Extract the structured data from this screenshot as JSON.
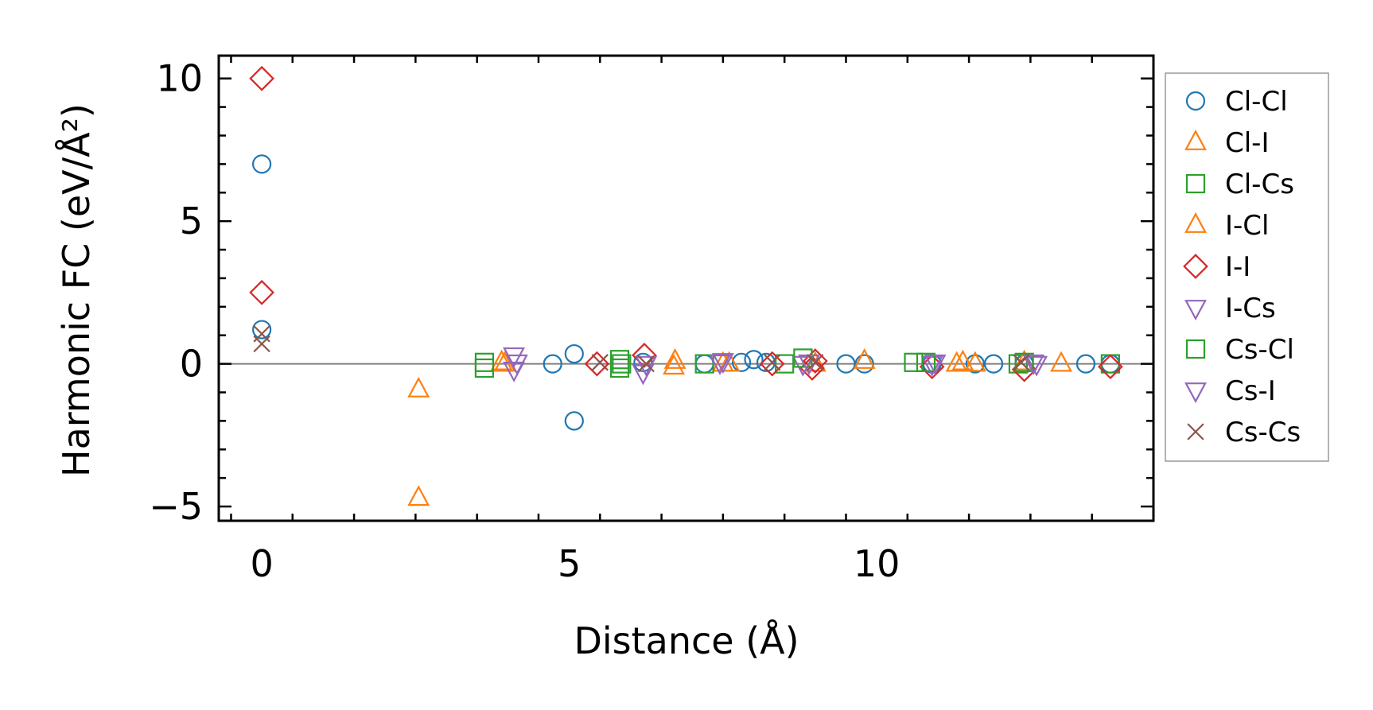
{
  "chart_data": {
    "type": "scatter",
    "xlabel": "Distance (Å)",
    "ylabel": "Harmonic FC (eV/Å²)",
    "xlim": [
      -0.7,
      14.5
    ],
    "ylim": [
      -5.5,
      10.8
    ],
    "xticks": [
      0,
      5,
      10
    ],
    "yticks": [
      -5,
      0,
      5,
      10
    ],
    "xtick_labels": [
      "0",
      "5",
      "10"
    ],
    "ytick_labels": [
      "−5",
      "0",
      "5",
      "10"
    ],
    "grid": false,
    "legend_position": "outside-right",
    "zero_line": true,
    "series": [
      {
        "name": "Cl-Cl",
        "marker": "circle",
        "color": "#1f77b4",
        "x": [
          0,
          0,
          4.73,
          5.08,
          5.08,
          6.2,
          7.2,
          7.8,
          8.0,
          8.2,
          9.5,
          9.8,
          10.9,
          11.6,
          11.9,
          12.4,
          13.4,
          13.8
        ],
        "y": [
          7.0,
          1.2,
          0.0,
          0.35,
          -2.0,
          0.05,
          0.0,
          0.05,
          0.15,
          0.05,
          0.0,
          0.0,
          0.0,
          0.0,
          0.0,
          0.0,
          0.0,
          0.0
        ]
      },
      {
        "name": "Cl-I",
        "marker": "triangle-up",
        "color": "#ff7f0e",
        "x": [
          2.55,
          2.55,
          3.9,
          6.7,
          7.5,
          9.0,
          11.3,
          11.6,
          13.0
        ],
        "y": [
          -0.9,
          -4.7,
          0.05,
          -0.1,
          0.0,
          0.0,
          0.0,
          0.0,
          0.0
        ]
      },
      {
        "name": "Cl-Cs",
        "marker": "square",
        "color": "#2ca02c",
        "x": [
          3.62,
          3.62,
          5.82,
          5.82,
          7.2,
          8.5,
          12.3,
          13.8
        ],
        "y": [
          0.05,
          -0.15,
          0.15,
          -0.15,
          0.0,
          0.0,
          0.0,
          0.0
        ]
      },
      {
        "name": "I-Cl",
        "marker": "triangle-up",
        "color": "#ff7f0e",
        "x": [
          3.95,
          6.72,
          7.6,
          9.8,
          11.4,
          12.4
        ],
        "y": [
          0.0,
          0.1,
          0.0,
          0.1,
          0.05,
          0.05
        ]
      },
      {
        "name": "I-I",
        "marker": "diamond",
        "color": "#d62728",
        "x": [
          0,
          0,
          5.45,
          6.22,
          8.3,
          8.95,
          9.0,
          10.9,
          12.4,
          13.8
        ],
        "y": [
          10.0,
          2.5,
          0.0,
          0.3,
          0.0,
          -0.15,
          0.1,
          -0.1,
          -0.2,
          -0.1
        ]
      },
      {
        "name": "I-Cs",
        "marker": "triangle-down",
        "color": "#9467bd",
        "x": [
          4.1,
          4.1,
          6.2,
          7.5,
          8.8,
          10.9,
          12.6
        ],
        "y": [
          0.3,
          -0.2,
          -0.3,
          0.1,
          0.0,
          0.0,
          0.0
        ]
      },
      {
        "name": "Cs-Cl",
        "marker": "square",
        "color": "#2ca02c",
        "x": [
          5.85,
          8.8,
          10.6,
          10.8,
          12.4
        ],
        "y": [
          0.0,
          0.2,
          0.05,
          0.05,
          0.05
        ]
      },
      {
        "name": "Cs-I",
        "marker": "triangle-down",
        "color": "#9467bd",
        "x": [
          4.15,
          6.25,
          7.45,
          8.9,
          10.95,
          12.55
        ],
        "y": [
          0.05,
          0.0,
          0.05,
          0.05,
          0.05,
          0.05
        ]
      },
      {
        "name": "Cs-Cs",
        "marker": "x",
        "color": "#8c564b",
        "x": [
          0,
          0,
          5.5,
          6.25,
          8.3,
          9.0,
          12.35
        ],
        "y": [
          1.05,
          0.7,
          0.05,
          0.0,
          0.05,
          0.05,
          0.05
        ]
      }
    ]
  }
}
